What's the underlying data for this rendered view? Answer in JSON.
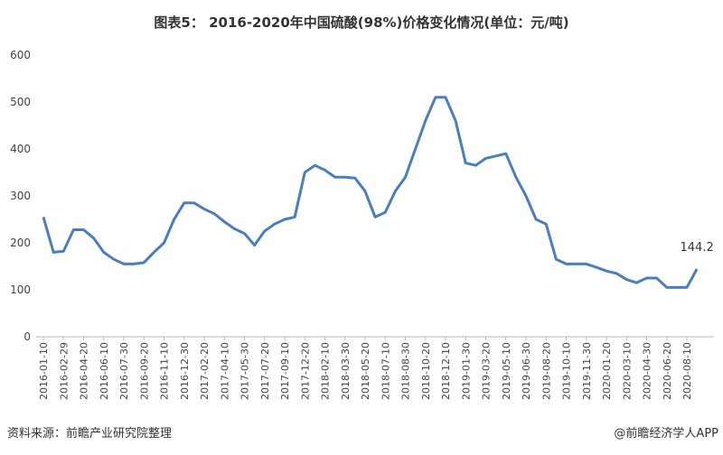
{
  "chart_data": {
    "type": "line",
    "title": "图表5：  2016-2020年中国硫酸(98%)价格变化情况(单位：元/吨)",
    "source": "资料来源：前瞻产业研究院整理",
    "credit": "@前瞻经济学人APP",
    "categories": [
      "2016-01-10",
      null,
      "2016-02-29",
      null,
      "2016-04-20",
      null,
      "2016-06-10",
      null,
      "2016-07-30",
      null,
      "2016-09-20",
      null,
      "2016-11-10",
      null,
      "2016-12-30",
      null,
      "2017-02-20",
      null,
      "2017-04-10",
      null,
      "2017-05-30",
      null,
      "2017-07-20",
      null,
      "2017-09-10",
      null,
      "2017-12-20",
      null,
      "2018-02-10",
      null,
      "2018-03-30",
      null,
      "2018-05-20",
      null,
      "2018-07-10",
      null,
      "2018-08-30",
      null,
      "2018-10-20",
      null,
      "2018-12-10",
      null,
      "2019-01-30",
      null,
      "2019-03-20",
      null,
      "2019-05-10",
      null,
      "2019-06-30",
      null,
      "2019-08-20",
      null,
      "2019-10-10",
      null,
      "2019-11-30",
      null,
      "2020-01-20",
      null,
      "2020-03-10",
      null,
      "2020-04-30",
      null,
      "2020-06-20",
      null,
      "2020-08-10",
      null
    ],
    "values": [
      255,
      180,
      182,
      228,
      228,
      210,
      180,
      165,
      155,
      155,
      158,
      180,
      200,
      250,
      285,
      285,
      272,
      262,
      245,
      230,
      220,
      195,
      225,
      240,
      250,
      255,
      350,
      365,
      355,
      340,
      340,
      338,
      310,
      255,
      265,
      310,
      340,
      400,
      460,
      510,
      510,
      460,
      370,
      365,
      380,
      385,
      390,
      340,
      300,
      250,
      240,
      165,
      155,
      155,
      155,
      148,
      140,
      135,
      122,
      115,
      125,
      125,
      105,
      105,
      105,
      144.2
    ],
    "color": "#4a7ebf",
    "ylim": [
      0,
      600
    ],
    "yticks": [
      0,
      100,
      200,
      300,
      400,
      500,
      600
    ],
    "grid": false
  }
}
